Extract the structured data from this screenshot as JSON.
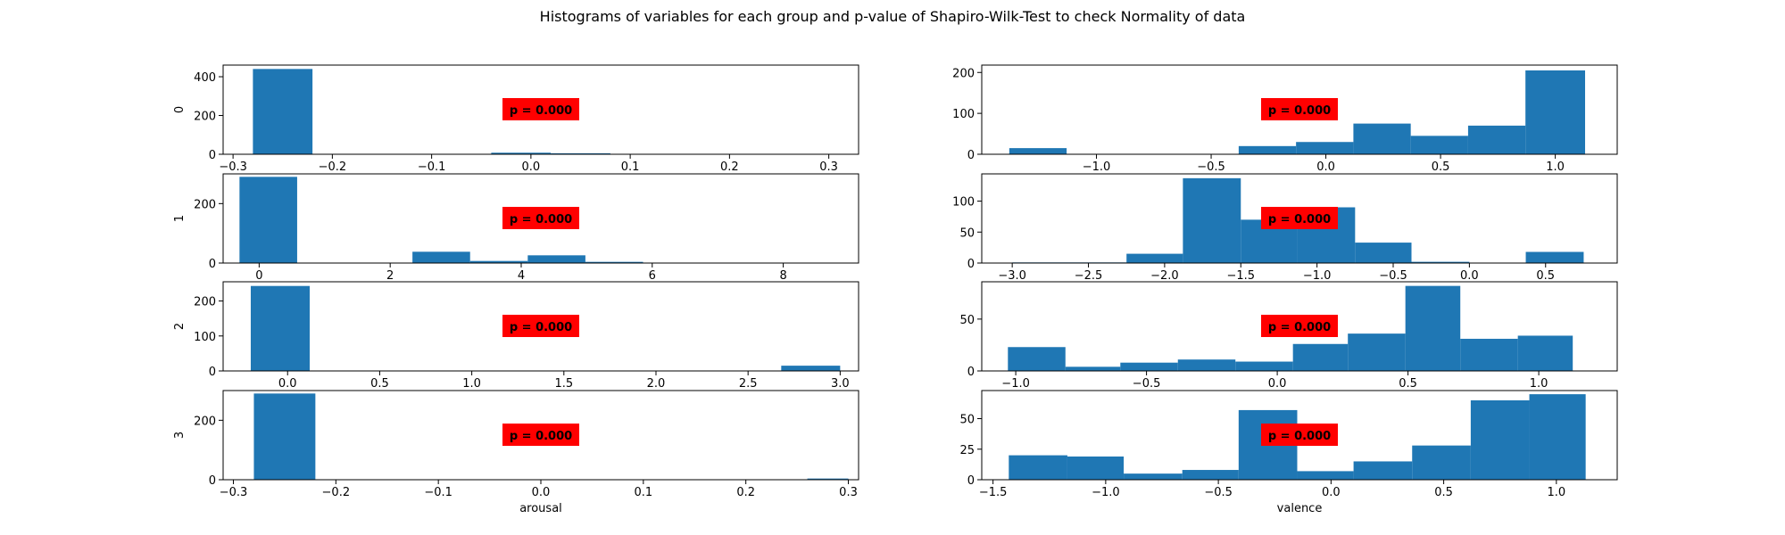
{
  "title": "Histograms of variables for each group and p-value of Shapiro-Wilk-Test to check Normality of data",
  "colors": {
    "bar": "#1f77b4",
    "annotation_bg": "#ff0000"
  },
  "chart_data": [
    {
      "type": "bar",
      "group": "0",
      "ylabel": "0",
      "xlabel": "",
      "annotation": "p = 0.000",
      "xlim": [
        -0.31,
        0.33
      ],
      "ylim": [
        0,
        460
      ],
      "xticks": [
        -0.3,
        -0.2,
        -0.1,
        0.0,
        0.1,
        0.2,
        0.3
      ],
      "xtick_labels": [
        "−0.3",
        "−0.2",
        "−0.1",
        "0.0",
        "0.1",
        "0.2",
        "0.3"
      ],
      "yticks": [
        0,
        200,
        400
      ],
      "ytick_labels": [
        "0",
        "200",
        "400"
      ],
      "bin_edges": [
        -0.28,
        -0.22,
        -0.16,
        -0.1,
        -0.04,
        0.02,
        0.08,
        0.14,
        0.2,
        0.26,
        0.3
      ],
      "counts": [
        440,
        0,
        0,
        0,
        8,
        5,
        0,
        0,
        0,
        0
      ]
    },
    {
      "type": "bar",
      "group": "0",
      "ylabel": "",
      "xlabel": "",
      "annotation": "p = 0.000",
      "xlim": [
        -1.5,
        1.27
      ],
      "ylim": [
        0,
        218
      ],
      "xticks": [
        -1.0,
        -0.5,
        0.0,
        0.5,
        1.0
      ],
      "xtick_labels": [
        "−1.0",
        "−0.5",
        "0.0",
        "0.5",
        "1.0"
      ],
      "yticks": [
        0,
        100,
        200
      ],
      "ytick_labels": [
        "0",
        "100",
        "200"
      ],
      "bin_edges": [
        -1.38,
        -1.13,
        -0.88,
        -0.63,
        -0.38,
        -0.13,
        0.12,
        0.37,
        0.62,
        0.87,
        1.13
      ],
      "counts": [
        15,
        0,
        0,
        0,
        20,
        30,
        75,
        45,
        70,
        205
      ]
    },
    {
      "type": "bar",
      "group": "1",
      "ylabel": "1",
      "xlabel": "",
      "annotation": "p = 0.000",
      "xlim": [
        -0.55,
        9.15
      ],
      "ylim": [
        0,
        300
      ],
      "xticks": [
        0,
        2,
        4,
        6,
        8
      ],
      "xtick_labels": [
        "0",
        "2",
        "4",
        "6",
        "8"
      ],
      "yticks": [
        0,
        200
      ],
      "ytick_labels": [
        "0",
        "200"
      ],
      "bin_edges": [
        -0.3,
        0.58,
        1.46,
        2.34,
        3.22,
        4.1,
        4.98,
        5.86,
        6.74,
        7.62,
        8.5
      ],
      "counts": [
        290,
        0,
        0,
        38,
        7,
        26,
        4,
        0,
        0,
        0
      ]
    },
    {
      "type": "bar",
      "group": "1",
      "ylabel": "",
      "xlabel": "",
      "annotation": "p = 0.000",
      "xlim": [
        -3.2,
        0.97
      ],
      "ylim": [
        0,
        144
      ],
      "xticks": [
        -3.0,
        -2.5,
        -2.0,
        -1.5,
        -1.0,
        -0.5,
        0.0,
        0.5
      ],
      "xtick_labels": [
        "−3.0",
        "−2.5",
        "−2.0",
        "−1.5",
        "−1.0",
        "−0.5",
        "0.0",
        "0.5"
      ],
      "yticks": [
        0,
        50,
        100
      ],
      "ytick_labels": [
        "0",
        "50",
        "100"
      ],
      "bin_edges": [
        -3.0,
        -2.63,
        -2.25,
        -1.88,
        -1.5,
        -1.13,
        -0.75,
        -0.38,
        0.0,
        0.37,
        0.75
      ],
      "counts": [
        1,
        1,
        15,
        137,
        70,
        90,
        33,
        2,
        0,
        18
      ]
    },
    {
      "type": "bar",
      "group": "2",
      "ylabel": "2",
      "xlabel": "",
      "annotation": "p = 0.000",
      "xlim": [
        -0.35,
        3.1
      ],
      "ylim": [
        0,
        255
      ],
      "xticks": [
        0.0,
        0.5,
        1.0,
        1.5,
        2.0,
        2.5,
        3.0
      ],
      "xtick_labels": [
        "0.0",
        "0.5",
        "1.0",
        "1.5",
        "2.0",
        "2.5",
        "3.0"
      ],
      "yticks": [
        0,
        100,
        200
      ],
      "ytick_labels": [
        "0",
        "100",
        "200"
      ],
      "bin_edges": [
        -0.2,
        0.12,
        0.44,
        0.76,
        1.08,
        1.4,
        1.72,
        2.04,
        2.36,
        2.68,
        3.0
      ],
      "counts": [
        243,
        0,
        0,
        0,
        0,
        0,
        0,
        0,
        0,
        15
      ]
    },
    {
      "type": "bar",
      "group": "2",
      "ylabel": "",
      "xlabel": "",
      "annotation": "p = 0.000",
      "xlim": [
        -1.13,
        1.3
      ],
      "ylim": [
        0,
        86
      ],
      "xticks": [
        -1.0,
        -0.5,
        0.0,
        0.5,
        1.0
      ],
      "xtick_labels": [
        "−1.0",
        "−0.5",
        "0.0",
        "0.5",
        "1.0"
      ],
      "yticks": [
        0,
        50
      ],
      "ytick_labels": [
        "0",
        "50"
      ],
      "bin_edges": [
        -1.03,
        -0.81,
        -0.6,
        -0.38,
        -0.16,
        0.06,
        0.27,
        0.49,
        0.7,
        0.92,
        1.13
      ],
      "counts": [
        23,
        4,
        8,
        11,
        9,
        26,
        36,
        82,
        31,
        34
      ]
    },
    {
      "type": "bar",
      "group": "3",
      "ylabel": "3",
      "xlabel": "arousal",
      "annotation": "p = 0.000",
      "xlim": [
        -0.31,
        0.31
      ],
      "ylim": [
        0,
        300
      ],
      "xticks": [
        -0.3,
        -0.2,
        -0.1,
        0.0,
        0.1,
        0.2,
        0.3
      ],
      "xtick_labels": [
        "−0.3",
        "−0.2",
        "−0.1",
        "0.0",
        "0.1",
        "0.2",
        "0.3"
      ],
      "yticks": [
        0,
        200
      ],
      "ytick_labels": [
        "0",
        "200"
      ],
      "bin_edges": [
        -0.28,
        -0.22,
        -0.16,
        -0.1,
        -0.04,
        0.02,
        0.08,
        0.14,
        0.2,
        0.26,
        0.3
      ],
      "counts": [
        290,
        0,
        0,
        0,
        0,
        0,
        0,
        0,
        0,
        4
      ]
    },
    {
      "type": "bar",
      "group": "3",
      "ylabel": "",
      "xlabel": "valence",
      "annotation": "p = 0.000",
      "xlim": [
        -1.55,
        1.27
      ],
      "ylim": [
        0,
        73
      ],
      "xticks": [
        -1.5,
        -1.0,
        -0.5,
        0.0,
        0.5,
        1.0
      ],
      "xtick_labels": [
        "−1.5",
        "−1.0",
        "−0.5",
        "0.0",
        "0.5",
        "1.0"
      ],
      "yticks": [
        0,
        25,
        50
      ],
      "ytick_labels": [
        "0",
        "25",
        "50"
      ],
      "bin_edges": [
        -1.43,
        -1.17,
        -0.92,
        -0.66,
        -0.41,
        -0.15,
        0.1,
        0.36,
        0.62,
        0.88,
        1.13
      ],
      "counts": [
        20,
        19,
        5,
        8,
        57,
        7,
        15,
        28,
        65,
        70
      ]
    }
  ]
}
